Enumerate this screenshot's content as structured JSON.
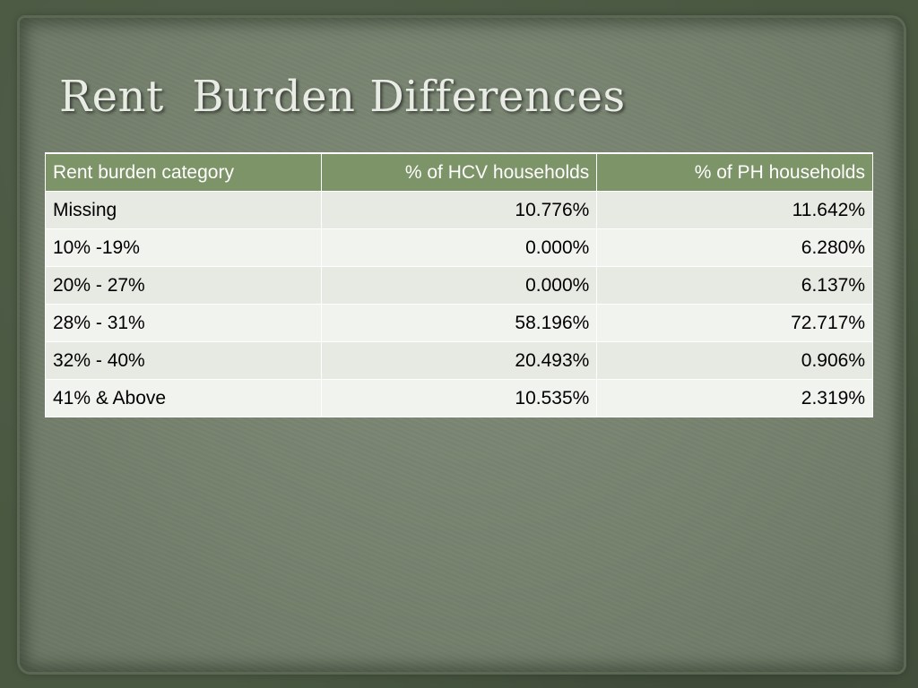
{
  "slide": {
    "title": "Rent  Burden Differences"
  },
  "table": {
    "headers": [
      "Rent burden category",
      "% of HCV households",
      "% of PH households"
    ],
    "rows": [
      [
        "Missing",
        "10.776%",
        "11.642%"
      ],
      [
        "10% -19%",
        "0.000%",
        "6.280%"
      ],
      [
        "20% - 27%",
        "0.000%",
        "6.137%"
      ],
      [
        "28% - 31%",
        "58.196%",
        "72.717%"
      ],
      [
        "32% - 40%",
        "20.493%",
        "0.906%"
      ],
      [
        "41% & Above",
        "10.535%",
        "2.319%"
      ]
    ]
  },
  "colors": {
    "header_bg": "#7c9467",
    "row_odd_bg": "#e7e9e3",
    "row_even_bg": "#f1f3ef",
    "paper_bg": "#76816e",
    "frame_bg": "#4a5842"
  }
}
